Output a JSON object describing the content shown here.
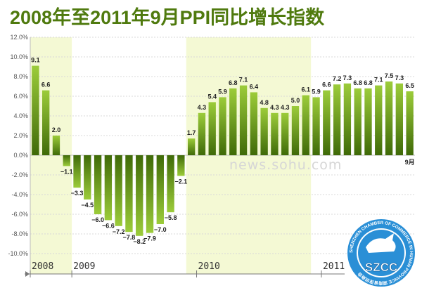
{
  "title": "2008年至2011年9月PPI同比增长指数",
  "watermark": "news.sohu.com",
  "logo": {
    "text": "SZCC",
    "ring_text": "SHENZHEN CHAMBER OF COMMERCE IN HUNAN PROVINCE 湖南省深圳商会"
  },
  "colors": {
    "bar_top": "#9ccc3a",
    "bar_bottom": "#3f6a08",
    "band": "#f4f9d4",
    "title": "#4f7a0e"
  },
  "chart_data": {
    "type": "bar",
    "title": "2008年至2011年9月PPI同比增长指数",
    "ylim": [
      -10,
      12
    ],
    "yticks": [
      "12.0%",
      "10.0%",
      "8.0%",
      "6.0%",
      "4.0%",
      "2.0%",
      "0.0%",
      "-2.0%",
      "-4.0%",
      "-6.0%",
      "-8.0%",
      "-10.0%"
    ],
    "ytick_values": [
      12,
      10,
      8,
      6,
      4,
      2,
      0,
      -2,
      -4,
      -6,
      -8,
      -10
    ],
    "year_labels": [
      "2008",
      "2009",
      "2010",
      "2011"
    ],
    "end_label": "9月",
    "values": [
      9.1,
      6.6,
      2.0,
      -1.1,
      -3.3,
      -4.5,
      -6.0,
      -6.6,
      -7.2,
      -7.8,
      -8.2,
      -7.9,
      -7.0,
      -5.8,
      -2.1,
      1.7,
      4.3,
      5.4,
      5.9,
      6.8,
      7.1,
      6.4,
      4.8,
      4.3,
      4.3,
      5.0,
      6.1,
      5.9,
      6.6,
      7.2,
      7.3,
      6.8,
      6.8,
      7.1,
      7.5,
      7.3,
      6.5
    ],
    "labels": [
      "9.1",
      "6.6",
      "2.0",
      "-1.1",
      "-3.3",
      "-4.5",
      "-6.0",
      "-6.6",
      "-7.2",
      "-7.8",
      "-8.2",
      "-7.9",
      "-7.0",
      "-5.8",
      "-2.1",
      "1.7",
      "4.3",
      "5.4",
      "5.9",
      "6.8",
      "7.1",
      "6.4",
      "4.8",
      "4.3",
      "4.3",
      "5.0",
      "6.1",
      "5.9",
      "6.6",
      "7.2",
      "7.3",
      "6.8",
      "6.8",
      "7.1",
      "7.5",
      "7.3",
      "6.5"
    ],
    "grid": true
  }
}
